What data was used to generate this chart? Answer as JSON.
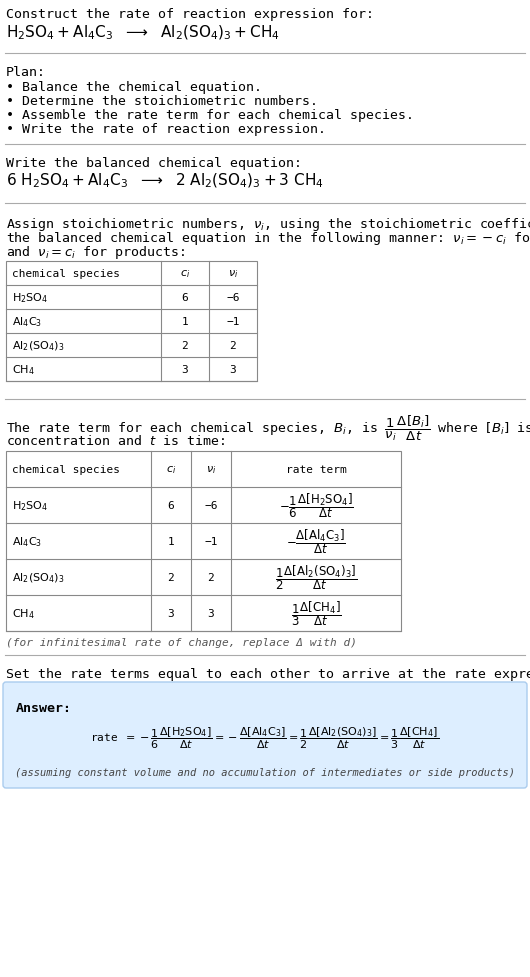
{
  "bg_color": "#ffffff",
  "answer_bg": "#ddeeff",
  "answer_border": "#aaccee",
  "line_color": "#aaaaaa",
  "table_border": "#888888",
  "title_text": "Construct the rate of reaction expression for:",
  "plan_header": "Plan:",
  "plan_items": [
    "• Balance the chemical equation.",
    "• Determine the stoichiometric numbers.",
    "• Assemble the rate term for each chemical species.",
    "• Write the rate of reaction expression."
  ],
  "balanced_header": "Write the balanced chemical equation:",
  "set_equal_text": "Set the rate terms equal to each other to arrive at the rate expression:",
  "answer_label": "Answer:",
  "infinitesimal_note": "(for infinitesimal rate of change, replace Δ with d)",
  "assuming_note": "(assuming constant volume and no accumulation of intermediates or side products)",
  "table1_species": [
    "H₂SO₄",
    "Al₄C₃",
    "Al₂(SO₄)₃",
    "CH₄"
  ],
  "table1_ci": [
    "6",
    "1",
    "2",
    "3"
  ],
  "table1_ni": [
    "−6",
    "−1",
    "2",
    "3"
  ],
  "table2_ci": [
    "6",
    "1",
    "2",
    "3"
  ],
  "table2_ni": [
    "−6",
    "−1",
    "2",
    "3"
  ],
  "fs_mono": 9.5,
  "fs_small_mono": 8.0
}
